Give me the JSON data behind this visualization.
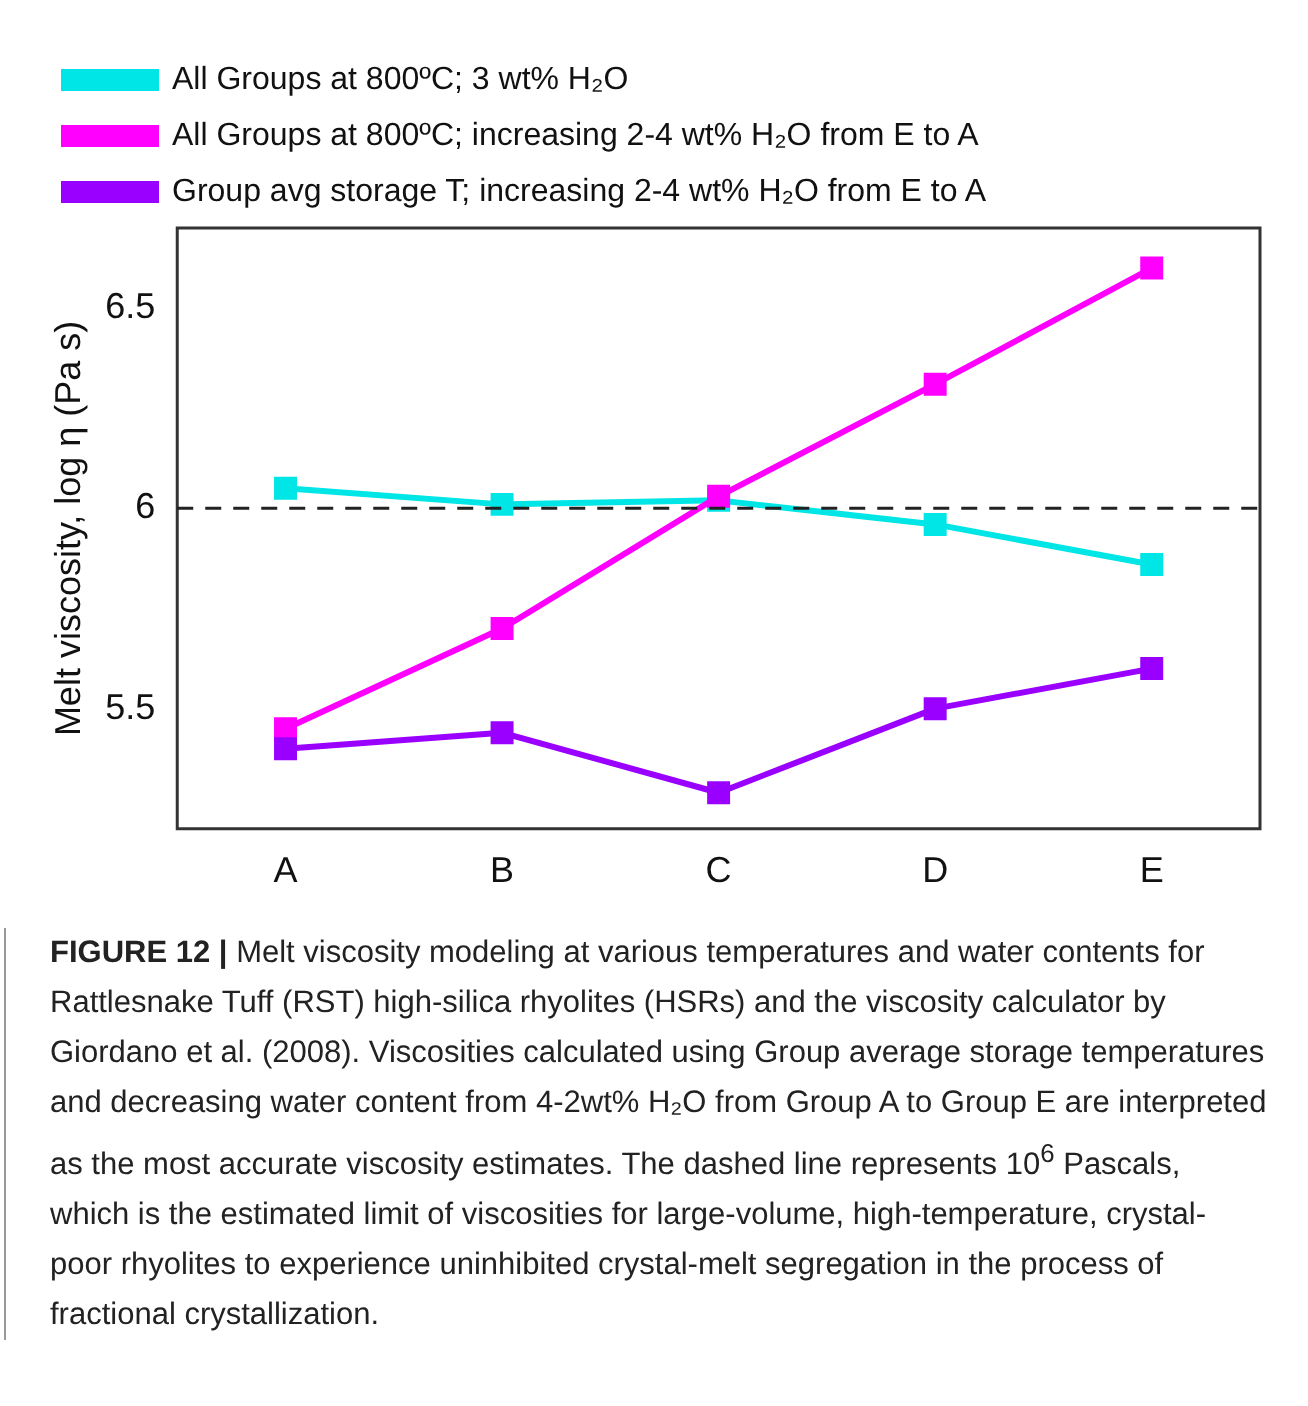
{
  "chart_data": {
    "type": "line",
    "ylabel": "Melt viscosity, log η (Pa s)",
    "categories": [
      "A",
      "B",
      "C",
      "D",
      "E"
    ],
    "series": [
      {
        "name": "All Groups at 800ºC; 3 wt% H₂O",
        "color": "#00e5e5",
        "values": [
          6.05,
          6.01,
          6.02,
          5.96,
          5.86
        ]
      },
      {
        "name": "All Groups at 800ºC; increasing 2-4 wt% H₂O from E to A",
        "color": "#ff00ff",
        "values": [
          5.45,
          5.7,
          6.03,
          6.31,
          6.6
        ]
      },
      {
        "name": "Group avg storage T; increasing 2-4 wt% H₂O from E to A",
        "color": "#9900ff",
        "values": [
          5.4,
          5.44,
          5.29,
          5.5,
          5.6
        ]
      }
    ],
    "ylim": [
      5.2,
      6.7
    ],
    "yticks": [
      5.5,
      6,
      6.5
    ],
    "ref_lines": [
      {
        "axis": "y",
        "value": 6,
        "color": "#222222",
        "line_style": "dashed"
      }
    ],
    "marker": "square",
    "line_style": "solid",
    "grid": false,
    "legend": "top",
    "annotations": [
      "FIGURE 12 |",
      "Melt viscosity modeling at various temperatures and water contents for Rattlesnake Tuff (RST) high-silica rhyolites (HSRs) and the viscosity calculator by Giordano et al. (2008). Viscosities calculated using Group average storage temperatures and decreasing water content from 4-2wt% H₂O from Group A to Group E are interpreted as the most accurate viscosity estimates. The dashed line represents 10$^{6}$ Pascals, which is the estimated limit of viscosities for large-volume, high-temperature, crystal-poor rhyolites to experience uninhibited crystal-melt segregation in the process of fractional crystallization."
    ]
  }
}
